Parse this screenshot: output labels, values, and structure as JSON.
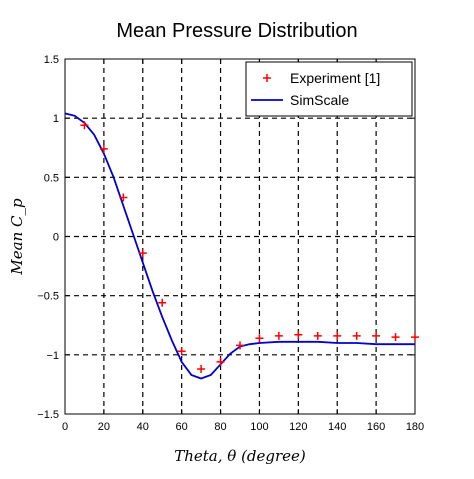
{
  "chart_data": {
    "type": "line",
    "title": "Mean Pressure Distribution",
    "xlabel": "Theta, θ (degree)",
    "ylabel": "Mean C_p",
    "xlim": [
      0,
      180
    ],
    "ylim": [
      -1.5,
      1.5
    ],
    "x_ticks": [
      0,
      20,
      40,
      60,
      80,
      100,
      120,
      140,
      160,
      180
    ],
    "y_ticks": [
      -1.5,
      -1,
      -0.5,
      0,
      0.5,
      1,
      1.5
    ],
    "x_tick_labels": [
      "0",
      "20",
      "40",
      "60",
      "80",
      "100",
      "120",
      "140",
      "160",
      "180"
    ],
    "y_tick_labels": [
      "−1.5",
      "−1",
      "−0.5",
      "0",
      "0.5",
      "1",
      "1.5"
    ],
    "grid": "dashed",
    "legend_position": "top-right",
    "series": [
      {
        "name": "Experiment [1]",
        "kind": "scatter",
        "marker": "plus",
        "color": "#ff0000",
        "x": [
          10,
          20,
          30,
          40,
          50,
          60,
          70,
          80,
          90,
          100,
          110,
          120,
          130,
          140,
          150,
          160,
          170,
          180
        ],
        "y": [
          0.94,
          0.74,
          0.33,
          -0.14,
          -0.56,
          -0.97,
          -1.12,
          -1.06,
          -0.92,
          -0.86,
          -0.84,
          -0.83,
          -0.84,
          -0.84,
          -0.84,
          -0.84,
          -0.85,
          -0.85
        ]
      },
      {
        "name": "SimScale",
        "kind": "line",
        "color": "#0000cc",
        "x": [
          0,
          5,
          10,
          15,
          20,
          25,
          30,
          35,
          40,
          45,
          50,
          55,
          60,
          65,
          70,
          75,
          80,
          85,
          90,
          95,
          100,
          110,
          120,
          130,
          140,
          150,
          160,
          170,
          180
        ],
        "y": [
          1.04,
          1.02,
          0.96,
          0.86,
          0.7,
          0.5,
          0.26,
          0.02,
          -0.22,
          -0.46,
          -0.68,
          -0.88,
          -1.06,
          -1.17,
          -1.2,
          -1.17,
          -1.08,
          -0.99,
          -0.93,
          -0.91,
          -0.9,
          -0.89,
          -0.89,
          -0.89,
          -0.9,
          -0.9,
          -0.91,
          -0.91,
          -0.91
        ]
      }
    ]
  }
}
